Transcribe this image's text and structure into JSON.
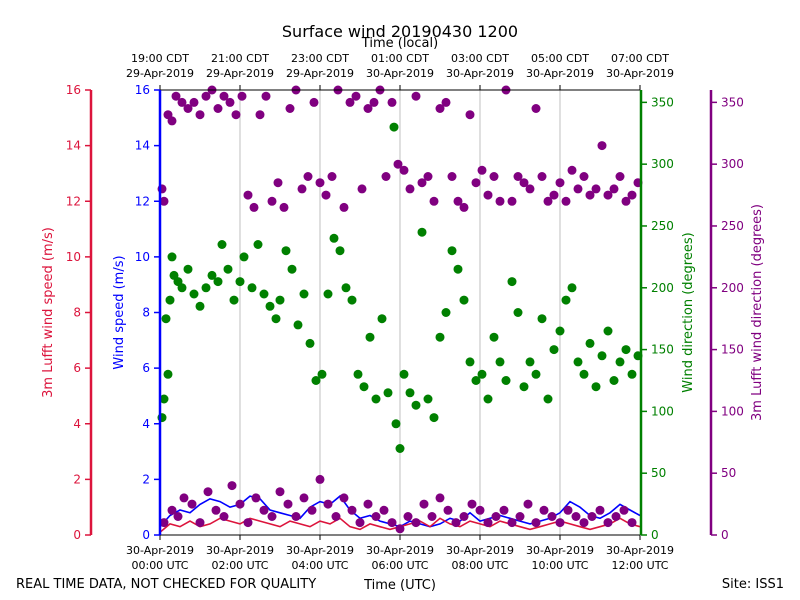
{
  "chart_data": {
    "type": "scatter",
    "title": "Surface wind 20190430 1200",
    "top_axis_label": "Time (local)",
    "top_ticks": [
      {
        "line1": "19:00 CDT",
        "line2": "29-Apr-2019"
      },
      {
        "line1": "21:00 CDT",
        "line2": "29-Apr-2019"
      },
      {
        "line1": "23:00 CDT",
        "line2": "29-Apr-2019"
      },
      {
        "line1": "01:00 CDT",
        "line2": "30-Apr-2019"
      },
      {
        "line1": "03:00 CDT",
        "line2": "30-Apr-2019"
      },
      {
        "line1": "05:00 CDT",
        "line2": "30-Apr-2019"
      },
      {
        "line1": "07:00 CDT",
        "line2": "30-Apr-2019"
      }
    ],
    "bottom_ticks": [
      {
        "line1": "30-Apr-2019",
        "line2": "00:00 UTC"
      },
      {
        "line1": "30-Apr-2019",
        "line2": "02:00 UTC"
      },
      {
        "line1": "30-Apr-2019",
        "line2": "04:00 UTC"
      },
      {
        "line1": "30-Apr-2019",
        "line2": "06:00 UTC"
      },
      {
        "line1": "30-Apr-2019",
        "line2": "08:00 UTC"
      },
      {
        "line1": "30-Apr-2019",
        "line2": "10:00 UTC"
      },
      {
        "line1": "30-Apr-2019",
        "line2": "12:00 UTC"
      }
    ],
    "xlabel": "Time (UTC)",
    "xlim": [
      0,
      12
    ],
    "axes": {
      "lufft_speed": {
        "label": "3m Lufft wind speed (m/s)",
        "color": "#dc143c",
        "lim": [
          0,
          16
        ],
        "ticks": [
          "0",
          "2",
          "4",
          "6",
          "8",
          "10",
          "12",
          "14",
          "16"
        ]
      },
      "speed": {
        "label": "Wind speed (m/s)",
        "color": "#0000ff",
        "lim": [
          0,
          16
        ],
        "ticks": [
          "0",
          "2",
          "4",
          "6",
          "8",
          "10",
          "12",
          "14",
          "16"
        ]
      },
      "direction": {
        "label": "Wind direction (degrees)",
        "color": "#008000",
        "lim": [
          0,
          360
        ],
        "ticks": [
          "0",
          "50",
          "100",
          "150",
          "200",
          "250",
          "300",
          "350"
        ]
      },
      "lufft_direction": {
        "label": "3m Lufft wind direction (degrees)",
        "color": "#800080",
        "lim": [
          0,
          360
        ],
        "ticks": [
          "0",
          "50",
          "100",
          "150",
          "200",
          "250",
          "300",
          "350"
        ]
      }
    },
    "series": [
      {
        "name": "Wind speed (m/s)",
        "kind": "line",
        "axis": "speed",
        "color": "#0000ff",
        "x": [
          0,
          0.25,
          0.5,
          0.75,
          1,
          1.25,
          1.5,
          1.75,
          2,
          2.25,
          2.5,
          2.75,
          3,
          3.25,
          3.5,
          3.75,
          4,
          4.25,
          4.5,
          4.75,
          5,
          5.25,
          5.5,
          5.75,
          6,
          6.25,
          6.5,
          6.75,
          7,
          7.25,
          7.5,
          7.75,
          8,
          8.25,
          8.5,
          8.75,
          9,
          9.25,
          9.5,
          9.75,
          10,
          10.25,
          10.5,
          10.75,
          11,
          11.25,
          11.5,
          11.75,
          12
        ],
        "y": [
          0.3,
          0.7,
          0.9,
          0.8,
          1.1,
          1.3,
          1.2,
          1.0,
          1.1,
          1.4,
          1.3,
          0.9,
          0.8,
          0.7,
          0.6,
          1.0,
          1.2,
          1.1,
          1.4,
          0.9,
          0.6,
          0.7,
          0.5,
          0.4,
          0.3,
          0.5,
          0.4,
          0.3,
          0.4,
          0.6,
          0.5,
          0.8,
          0.5,
          0.6,
          0.7,
          0.6,
          0.5,
          0.4,
          0.5,
          0.6,
          0.8,
          1.2,
          1.0,
          0.7,
          0.6,
          0.8,
          1.1,
          0.9,
          0.7
        ]
      },
      {
        "name": "3m Lufft wind speed (m/s)",
        "kind": "line",
        "axis": "lufft_speed",
        "color": "#dc143c",
        "x": [
          0,
          0.25,
          0.5,
          0.75,
          1,
          1.25,
          1.5,
          1.75,
          2,
          2.25,
          2.5,
          2.75,
          3,
          3.25,
          3.5,
          3.75,
          4,
          4.25,
          4.5,
          4.75,
          5,
          5.25,
          5.5,
          5.75,
          6,
          6.25,
          6.5,
          6.75,
          7,
          7.25,
          7.5,
          7.75,
          8,
          8.25,
          8.5,
          8.75,
          9,
          9.25,
          9.5,
          9.75,
          10,
          10.25,
          10.5,
          10.75,
          11,
          11.25,
          11.5,
          11.75,
          12
        ],
        "y": [
          0.1,
          0.4,
          0.3,
          0.5,
          0.3,
          0.4,
          0.6,
          0.5,
          0.4,
          0.6,
          0.5,
          0.4,
          0.3,
          0.5,
          0.4,
          0.3,
          0.5,
          0.4,
          0.6,
          0.3,
          0.2,
          0.4,
          0.3,
          0.2,
          0.3,
          0.4,
          0.5,
          0.3,
          0.6,
          0.4,
          0.3,
          0.5,
          0.4,
          0.3,
          0.5,
          0.4,
          0.3,
          0.2,
          0.3,
          0.4,
          0.5,
          0.4,
          0.3,
          0.2,
          0.3,
          0.4,
          0.6,
          0.4,
          0.3
        ]
      },
      {
        "name": "Wind direction (degrees)",
        "kind": "scatter",
        "axis": "direction",
        "color": "#008000",
        "x": [
          0.05,
          0.1,
          0.15,
          0.2,
          0.25,
          0.3,
          0.35,
          0.45,
          0.55,
          0.7,
          0.85,
          1.0,
          1.15,
          1.3,
          1.45,
          1.55,
          1.7,
          1.85,
          2.0,
          2.1,
          2.3,
          2.45,
          2.6,
          2.75,
          2.9,
          3.0,
          3.15,
          3.3,
          3.45,
          3.6,
          3.75,
          3.9,
          4.05,
          4.2,
          4.35,
          4.5,
          4.65,
          4.8,
          4.95,
          5.1,
          5.25,
          5.4,
          5.55,
          5.7,
          5.85,
          5.9,
          6.0,
          6.1,
          6.25,
          6.4,
          6.55,
          6.7,
          6.85,
          7.0,
          7.15,
          7.3,
          7.45,
          7.6,
          7.75,
          7.9,
          8.05,
          8.2,
          8.35,
          8.5,
          8.65,
          8.8,
          8.95,
          9.1,
          9.25,
          9.4,
          9.55,
          9.7,
          9.85,
          10.0,
          10.15,
          10.3,
          10.45,
          10.6,
          10.75,
          10.9,
          11.05,
          11.2,
          11.35,
          11.5,
          11.65,
          11.8,
          11.95
        ],
        "y": [
          95,
          110,
          175,
          130,
          190,
          225,
          210,
          205,
          200,
          215,
          195,
          185,
          200,
          210,
          205,
          235,
          215,
          190,
          205,
          225,
          200,
          235,
          195,
          185,
          175,
          190,
          230,
          215,
          170,
          195,
          155,
          125,
          130,
          195,
          240,
          230,
          200,
          190,
          130,
          120,
          160,
          110,
          175,
          115,
          330,
          90,
          70,
          130,
          115,
          105,
          245,
          110,
          95,
          160,
          180,
          230,
          215,
          190,
          140,
          125,
          130,
          110,
          160,
          140,
          125,
          205,
          180,
          120,
          140,
          130,
          175,
          110,
          150,
          165,
          190,
          200,
          140,
          130,
          155,
          120,
          145,
          165,
          125,
          140,
          150,
          130,
          145
        ]
      },
      {
        "name": "3m Lufft wind direction (degrees)",
        "kind": "scatter",
        "axis": "lufft_direction",
        "color": "#800080",
        "x": [
          0.05,
          0.1,
          0.2,
          0.3,
          0.4,
          0.55,
          0.7,
          0.85,
          1.0,
          1.15,
          1.3,
          1.45,
          1.6,
          1.75,
          1.9,
          2.05,
          2.2,
          2.35,
          2.5,
          2.65,
          2.8,
          2.95,
          3.1,
          3.25,
          3.4,
          3.55,
          3.7,
          3.85,
          4.0,
          4.15,
          4.3,
          4.45,
          4.6,
          4.75,
          4.9,
          5.05,
          5.2,
          5.35,
          5.5,
          5.65,
          5.8,
          5.95,
          6.1,
          6.25,
          6.4,
          6.55,
          6.7,
          6.85,
          7.0,
          7.15,
          7.3,
          7.45,
          7.6,
          7.75,
          7.9,
          8.05,
          8.2,
          8.35,
          8.5,
          8.65,
          8.8,
          8.95,
          9.1,
          9.25,
          9.4,
          9.55,
          9.7,
          9.85,
          10.0,
          10.15,
          10.3,
          10.45,
          10.6,
          10.75,
          10.9,
          11.05,
          11.2,
          11.35,
          11.5,
          11.65,
          11.8,
          11.95
        ],
        "y": [
          280,
          270,
          340,
          335,
          355,
          350,
          345,
          350,
          340,
          355,
          360,
          345,
          355,
          350,
          340,
          355,
          275,
          265,
          340,
          355,
          270,
          285,
          265,
          345,
          360,
          280,
          290,
          350,
          285,
          275,
          290,
          360,
          265,
          350,
          355,
          280,
          345,
          350,
          360,
          290,
          350,
          300,
          295,
          280,
          355,
          285,
          290,
          270,
          345,
          350,
          290,
          270,
          265,
          340,
          285,
          295,
          275,
          290,
          270,
          360,
          270,
          290,
          285,
          280,
          345,
          290,
          270,
          275,
          285,
          270,
          295,
          280,
          290,
          275,
          280,
          315,
          275,
          280,
          290,
          270,
          275,
          285
        ]
      },
      {
        "name": "3m Lufft wind direction (degrees) low band",
        "kind": "scatter",
        "axis": "lufft_direction",
        "color": "#800080",
        "x": [
          0.1,
          0.3,
          0.45,
          0.6,
          0.8,
          1.0,
          1.2,
          1.4,
          1.6,
          1.8,
          2.0,
          2.2,
          2.4,
          2.6,
          2.8,
          3.0,
          3.2,
          3.4,
          3.6,
          3.8,
          4.0,
          4.2,
          4.4,
          4.6,
          4.8,
          5.0,
          5.2,
          5.4,
          5.6,
          5.8,
          6.0,
          6.2,
          6.4,
          6.6,
          6.8,
          7.0,
          7.2,
          7.4,
          7.6,
          7.8,
          8.0,
          8.2,
          8.4,
          8.6,
          8.8,
          9.0,
          9.2,
          9.4,
          9.6,
          9.8,
          10.0,
          10.2,
          10.4,
          10.6,
          10.8,
          11.0,
          11.2,
          11.4,
          11.6,
          11.8
        ],
        "y": [
          10,
          20,
          15,
          30,
          25,
          10,
          35,
          20,
          15,
          40,
          25,
          10,
          30,
          20,
          15,
          35,
          25,
          15,
          30,
          20,
          45,
          25,
          15,
          30,
          20,
          10,
          25,
          15,
          20,
          10,
          5,
          15,
          10,
          25,
          15,
          30,
          20,
          10,
          15,
          25,
          20,
          10,
          15,
          20,
          10,
          15,
          25,
          10,
          20,
          15,
          10,
          20,
          15,
          10,
          15,
          20,
          10,
          15,
          20,
          10
        ]
      }
    ]
  },
  "footer": {
    "left_note": "REAL TIME DATA, NOT CHECKED FOR QUALITY",
    "site": "Site: ISS1"
  }
}
